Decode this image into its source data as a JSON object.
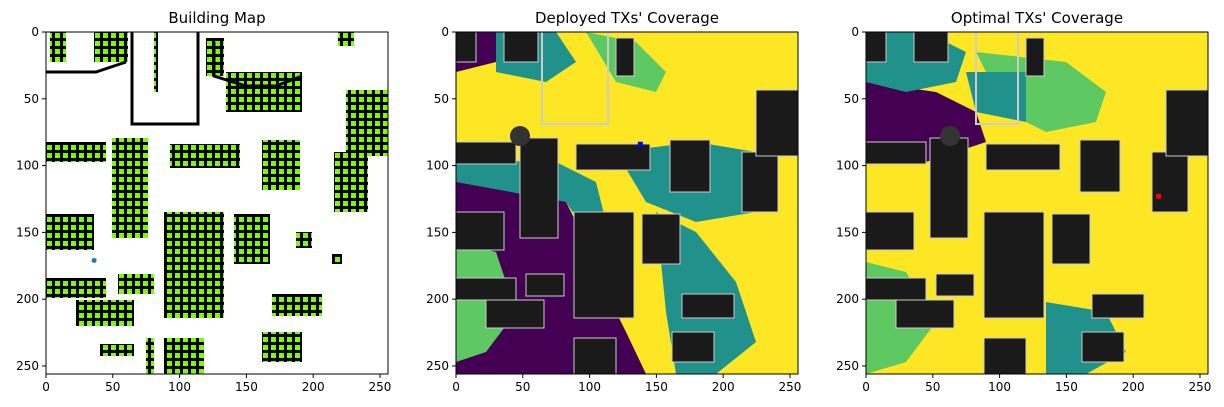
{
  "chart_data": [
    {
      "type": "heatmap",
      "title": "Building Map",
      "x_ticks": [
        0,
        50,
        100,
        150,
        200,
        250
      ],
      "y_ticks": [
        0,
        50,
        100,
        150,
        200,
        250
      ],
      "xlim": [
        0,
        256
      ],
      "ylim": [
        256,
        0
      ],
      "colors": {
        "background": "#ffffff",
        "building": "#000000",
        "candidate": "#7cfc00",
        "marker": "#1f77b4"
      },
      "marker": {
        "x": 36,
        "y": 171
      }
    },
    {
      "type": "heatmap",
      "title": "Deployed TXs' Coverage",
      "x_ticks": [
        0,
        50,
        100,
        150,
        200,
        250
      ],
      "y_ticks": [
        0,
        50,
        100,
        150,
        200,
        250
      ],
      "xlim": [
        0,
        256
      ],
      "ylim": [
        256,
        0
      ],
      "colors": {
        "high": "#fde725",
        "mid": "#5ec962",
        "low": "#21918c",
        "none": "#440154",
        "building": "#1a1a1a",
        "marker": "#0000ff"
      },
      "marker": {
        "x": 138,
        "y": 84
      }
    },
    {
      "type": "heatmap",
      "title": "Optimal TXs' Coverage",
      "x_ticks": [
        0,
        50,
        100,
        150,
        200,
        250
      ],
      "y_ticks": [
        0,
        50,
        100,
        150,
        200,
        250
      ],
      "xlim": [
        0,
        256
      ],
      "ylim": [
        256,
        0
      ],
      "colors": {
        "high": "#fde725",
        "mid": "#5ec962",
        "low": "#21918c",
        "none": "#440154",
        "building": "#1a1a1a",
        "marker": "#ff0000"
      },
      "marker": {
        "x": 219,
        "y": 123
      }
    }
  ]
}
